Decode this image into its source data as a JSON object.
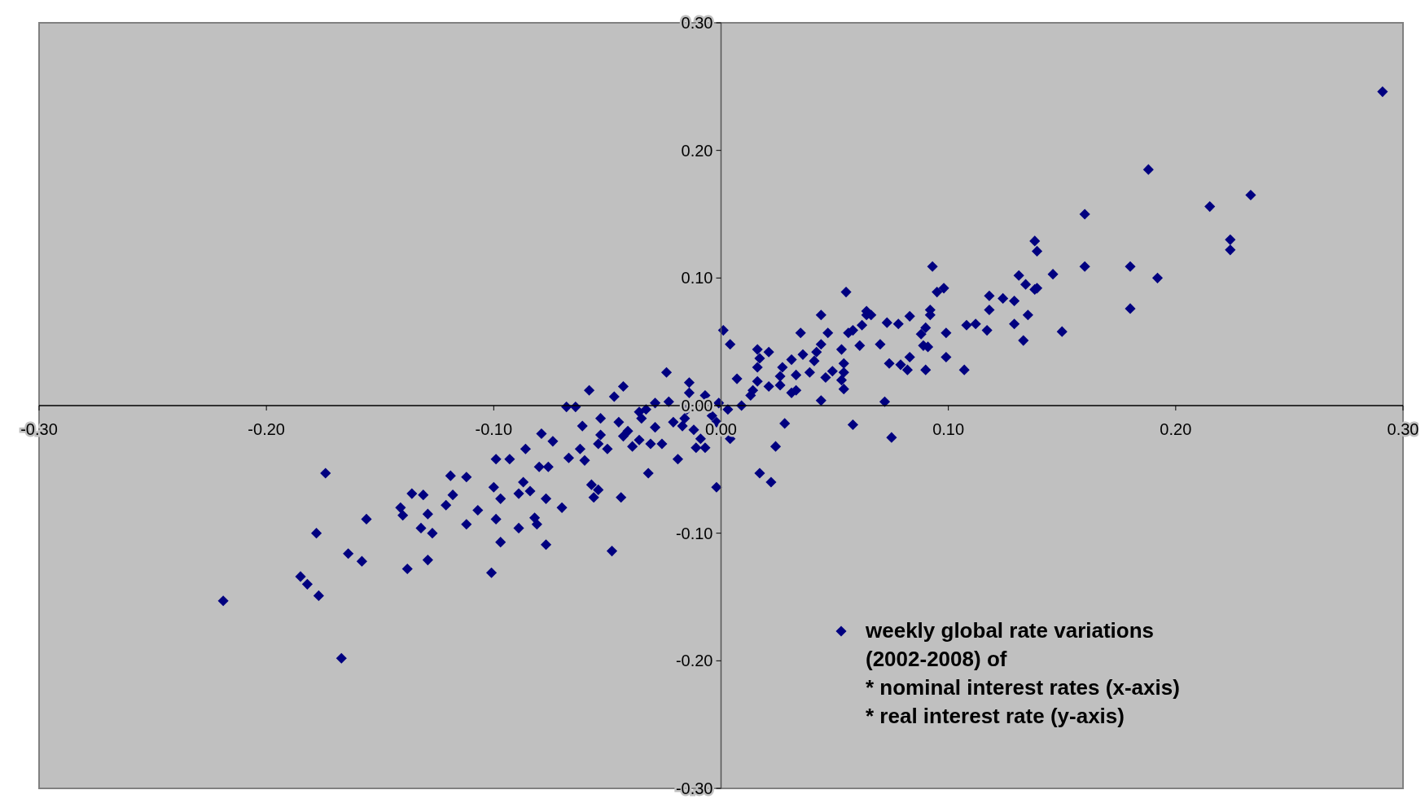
{
  "chart_data": {
    "type": "scatter",
    "marker": "diamond",
    "legend": "bottom right",
    "grid": false,
    "xlim": [
      -0.3,
      0.3
    ],
    "ylim": [
      -0.3,
      0.3
    ],
    "xticks": [
      {
        "value": -0.3,
        "label": "-0.30"
      },
      {
        "value": -0.2,
        "label": "-0.20"
      },
      {
        "value": -0.1,
        "label": "-0.10"
      },
      {
        "value": 0,
        "label": "0.00"
      },
      {
        "value": 0.1,
        "label": "0.10"
      },
      {
        "value": 0.2,
        "label": "0.20"
      },
      {
        "value": 0.3,
        "label": "0.30"
      }
    ],
    "yticks": [
      {
        "value": -0.3,
        "label": "-0.30"
      },
      {
        "value": -0.2,
        "label": "-0.20"
      },
      {
        "value": -0.1,
        "label": "-0.10"
      },
      {
        "value": 0,
        "label": "0.00"
      },
      {
        "value": 0.1,
        "label": "0.10"
      },
      {
        "value": 0.2,
        "label": "0.20"
      },
      {
        "value": 0.3,
        "label": "0.30"
      }
    ],
    "series": [
      {
        "name": "weekly global rate variations\n(2002-2008) of\n* nominal interest rates (x-axis)\n* real interest rate (y-axis)",
        "color": "#000080",
        "x": [
          0.291,
          0.188,
          0.233,
          0.215,
          0.16,
          0.224,
          0.224,
          0.16,
          0.18,
          0.192,
          0.18,
          0.15,
          0.138,
          0.139,
          0.146,
          0.131,
          0.134,
          0.138,
          0.139,
          0.135,
          0.129,
          0.118,
          0.124,
          0.129,
          0.133,
          0.118,
          0.117,
          0.108,
          0.112,
          0.107,
          0.099,
          0.099,
          0.093,
          0.098,
          0.095,
          0.092,
          0.092,
          0.09,
          0.088,
          0.091,
          0.089,
          0.09,
          0.083,
          0.083,
          0.078,
          0.073,
          0.079,
          0.082,
          0.074,
          0.07,
          0.064,
          0.066,
          0.064,
          0.062,
          0.061,
          0.072,
          0.075,
          0.058,
          0.055,
          0.058,
          0.056,
          0.053,
          0.054,
          0.054,
          0.053,
          0.054,
          0.049,
          0.046,
          0.047,
          0.044,
          0.044,
          0.044,
          0.042,
          0.041,
          0.036,
          0.039,
          0.035,
          0.033,
          0.031,
          0.033,
          0.031,
          0.027,
          0.026,
          0.026,
          0.028,
          0.024,
          0.022,
          0.017,
          0.021,
          0.016,
          0.017,
          0.016,
          0.021,
          0.016,
          0.014,
          0.013,
          0.007,
          0.004,
          0.001,
          0.003,
          0.004,
          0.009,
          -0.002,
          -0.002,
          -0.004,
          -0.001,
          -0.007,
          -0.009,
          -0.011,
          -0.007,
          -0.014,
          -0.014,
          -0.015,
          -0.016,
          -0.017,
          -0.019,
          -0.021,
          -0.023,
          -0.024,
          -0.026,
          -0.029,
          -0.031,
          -0.033,
          -0.035,
          -0.032,
          -0.036,
          -0.039,
          -0.043,
          -0.047,
          -0.041,
          -0.045,
          -0.043,
          -0.044,
          -0.048,
          -0.053,
          -0.053,
          -0.054,
          -0.054,
          -0.056,
          -0.057,
          -0.06,
          -0.062,
          -0.061,
          -0.064,
          -0.068,
          -0.067,
          -0.07,
          -0.074,
          -0.077,
          -0.079,
          -0.08,
          -0.076,
          -0.077,
          -0.081,
          -0.082,
          -0.084,
          -0.087,
          -0.086,
          -0.089,
          -0.089,
          -0.093,
          -0.097,
          -0.097,
          -0.1,
          -0.101,
          -0.099,
          -0.099,
          -0.107,
          -0.112,
          -0.112,
          -0.118,
          -0.119,
          -0.121,
          -0.129,
          -0.129,
          -0.131,
          -0.127,
          -0.132,
          -0.138,
          -0.14,
          -0.141,
          -0.136,
          -0.156,
          -0.158,
          -0.164,
          -0.174,
          -0.178,
          -0.177,
          -0.182,
          -0.185,
          -0.167,
          -0.219,
          -0.05,
          -0.058,
          -0.036,
          -0.029,
          -0.012
        ],
        "values": [
          0.246,
          0.185,
          0.165,
          0.156,
          0.15,
          0.13,
          0.122,
          0.109,
          0.109,
          0.1,
          0.076,
          0.058,
          0.129,
          0.121,
          0.103,
          0.102,
          0.095,
          0.091,
          0.092,
          0.071,
          0.082,
          0.086,
          0.084,
          0.064,
          0.051,
          0.075,
          0.059,
          0.063,
          0.064,
          0.028,
          0.038,
          0.057,
          0.109,
          0.092,
          0.089,
          0.075,
          0.071,
          0.061,
          0.056,
          0.046,
          0.047,
          0.028,
          0.038,
          0.07,
          0.064,
          0.065,
          0.032,
          0.028,
          0.033,
          0.048,
          0.074,
          0.071,
          0.071,
          0.063,
          0.047,
          0.003,
          -0.025,
          -0.015,
          0.089,
          0.059,
          0.057,
          0.044,
          0.033,
          0.026,
          0.02,
          0.013,
          0.027,
          0.022,
          0.057,
          0.071,
          0.004,
          0.048,
          0.042,
          0.035,
          0.04,
          0.026,
          0.057,
          0.024,
          0.036,
          0.012,
          0.01,
          0.03,
          0.023,
          0.016,
          -0.014,
          -0.032,
          -0.06,
          -0.053,
          0.042,
          0.044,
          0.037,
          0.03,
          0.015,
          0.019,
          0.012,
          0.008,
          0.021,
          0.048,
          0.059,
          -0.003,
          -0.026,
          0.0,
          -0.064,
          -0.013,
          -0.008,
          0.002,
          0.008,
          -0.026,
          -0.033,
          -0.033,
          0.018,
          0.01,
          -0.003,
          -0.01,
          -0.016,
          -0.042,
          -0.013,
          0.003,
          0.026,
          -0.03,
          -0.017,
          -0.03,
          -0.003,
          -0.01,
          -0.053,
          -0.027,
          -0.032,
          0.015,
          0.007,
          -0.02,
          -0.013,
          -0.024,
          -0.072,
          -0.114,
          -0.01,
          -0.023,
          -0.03,
          -0.066,
          -0.072,
          -0.062,
          -0.043,
          -0.034,
          -0.016,
          -0.001,
          -0.001,
          -0.041,
          -0.08,
          -0.028,
          -0.073,
          -0.022,
          -0.048,
          -0.048,
          -0.109,
          -0.093,
          -0.088,
          -0.067,
          -0.06,
          -0.034,
          -0.069,
          -0.096,
          -0.042,
          -0.107,
          -0.073,
          -0.064,
          -0.131,
          -0.089,
          -0.042,
          -0.082,
          -0.093,
          -0.056,
          -0.07,
          -0.055,
          -0.078,
          -0.085,
          -0.121,
          -0.07,
          -0.1,
          -0.096,
          -0.128,
          -0.086,
          -0.08,
          -0.069,
          -0.089,
          -0.122,
          -0.116,
          -0.053,
          -0.1,
          -0.149,
          -0.14,
          -0.134,
          -0.198,
          -0.153,
          -0.034,
          0.012,
          -0.005,
          0.002,
          -0.019
        ]
      }
    ]
  }
}
